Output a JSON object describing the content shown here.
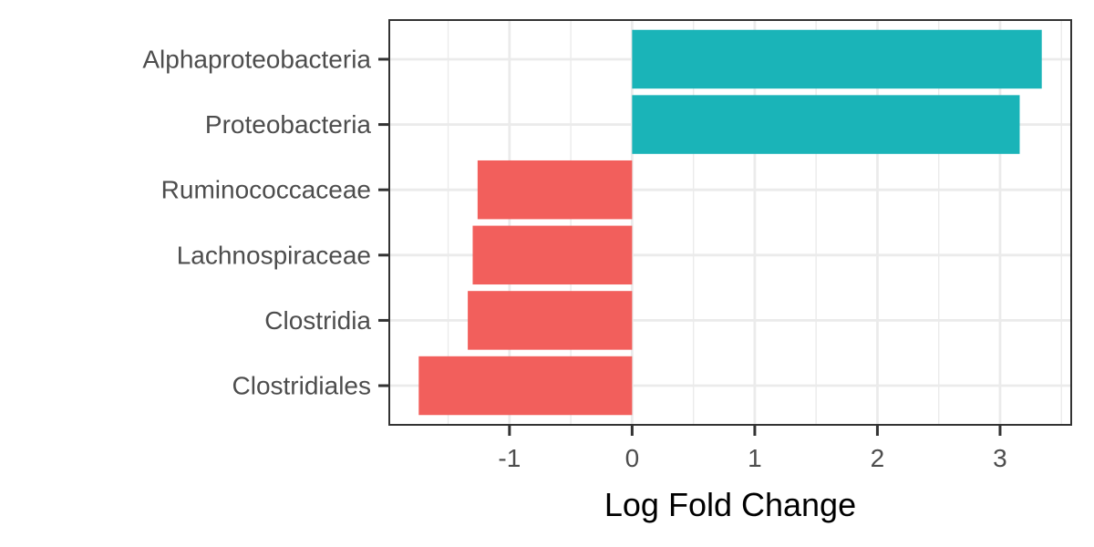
{
  "chart_data": {
    "type": "bar",
    "orientation": "horizontal",
    "title": "",
    "xlabel": "Log Fold Change",
    "ylabel": "",
    "categories": [
      "Alphaproteobacteria",
      "Proteobacteria",
      "Ruminococcaceae",
      "Lachnospiraceae",
      "Clostridia",
      "Clostridiales"
    ],
    "values": [
      3.34,
      3.16,
      -1.26,
      -1.3,
      -1.34,
      -1.74
    ],
    "xlim": [
      -1.98,
      3.58
    ],
    "xticks": [
      -1,
      0,
      1,
      2,
      3
    ],
    "xtick_labels": [
      "-1",
      "0",
      "1",
      "2",
      "3"
    ],
    "grid": true,
    "legend": "none",
    "colors": {
      "positive": "#1AB4B8",
      "negative": "#F25F5C",
      "grid": "#EBEBEB",
      "panel_border": "#333333",
      "tick_text": "#4D4D4D"
    }
  }
}
